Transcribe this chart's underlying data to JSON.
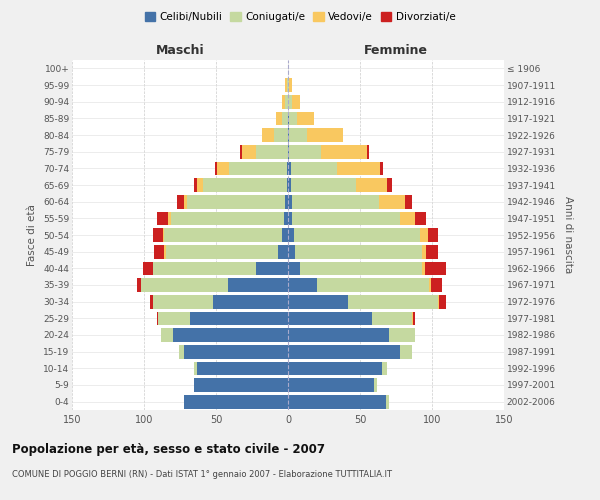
{
  "age_groups_bottom_to_top": [
    "0-4",
    "5-9",
    "10-14",
    "15-19",
    "20-24",
    "25-29",
    "30-34",
    "35-39",
    "40-44",
    "45-49",
    "50-54",
    "55-59",
    "60-64",
    "65-69",
    "70-74",
    "75-79",
    "80-84",
    "85-89",
    "90-94",
    "95-99",
    "100+"
  ],
  "birth_years_bottom_to_top": [
    "2002-2006",
    "1997-2001",
    "1992-1996",
    "1987-1991",
    "1982-1986",
    "1977-1981",
    "1972-1976",
    "1967-1971",
    "1962-1966",
    "1957-1961",
    "1952-1956",
    "1947-1951",
    "1942-1946",
    "1937-1941",
    "1932-1936",
    "1927-1931",
    "1922-1926",
    "1917-1921",
    "1912-1916",
    "1907-1911",
    "≤ 1906"
  ],
  "males_celibi": [
    72,
    65,
    63,
    72,
    80,
    68,
    52,
    42,
    22,
    7,
    4,
    3,
    2,
    1,
    1,
    0,
    0,
    0,
    0,
    0,
    0
  ],
  "males_coniugati": [
    0,
    0,
    2,
    4,
    8,
    22,
    42,
    60,
    72,
    78,
    82,
    78,
    68,
    58,
    40,
    22,
    10,
    4,
    2,
    1,
    0
  ],
  "males_vedovi": [
    0,
    0,
    0,
    0,
    0,
    0,
    0,
    0,
    0,
    1,
    1,
    2,
    2,
    4,
    8,
    10,
    8,
    4,
    2,
    1,
    0
  ],
  "males_divorziati": [
    0,
    0,
    0,
    0,
    0,
    1,
    2,
    3,
    7,
    7,
    7,
    8,
    5,
    2,
    2,
    1,
    0,
    0,
    0,
    0,
    0
  ],
  "females_nubili": [
    68,
    60,
    65,
    78,
    70,
    58,
    42,
    20,
    8,
    5,
    4,
    3,
    3,
    2,
    2,
    1,
    1,
    1,
    0,
    0,
    0
  ],
  "females_coniugate": [
    2,
    2,
    4,
    8,
    18,
    28,
    62,
    78,
    85,
    88,
    88,
    75,
    60,
    45,
    32,
    22,
    12,
    5,
    3,
    1,
    0
  ],
  "females_vedove": [
    0,
    0,
    0,
    0,
    0,
    1,
    1,
    1,
    2,
    3,
    5,
    10,
    18,
    22,
    30,
    32,
    25,
    12,
    5,
    2,
    0
  ],
  "females_divorziate": [
    0,
    0,
    0,
    0,
    0,
    1,
    5,
    8,
    15,
    8,
    7,
    8,
    5,
    3,
    2,
    1,
    0,
    0,
    0,
    0,
    0
  ],
  "colors": {
    "celibi": "#4472a8",
    "coniugati": "#c5d9a0",
    "vedovi": "#f9c860",
    "divorziati": "#cc2020"
  },
  "title": "Popolazione per età, sesso e stato civile - 2007",
  "subtitle": "COMUNE DI POGGIO BERNI (RN) - Dati ISTAT 1° gennaio 2007 - Elaborazione TUTTITALIA.IT",
  "label_maschi": "Maschi",
  "label_femmine": "Femmine",
  "ylabel_left": "Fasce di età",
  "ylabel_right": "Anni di nascita",
  "xlim": 150,
  "legend_labels": [
    "Celibi/Nubili",
    "Coniugati/e",
    "Vedovi/e",
    "Divorziati/e"
  ],
  "bg_color": "#f0f0f0",
  "plot_bg": "#ffffff"
}
